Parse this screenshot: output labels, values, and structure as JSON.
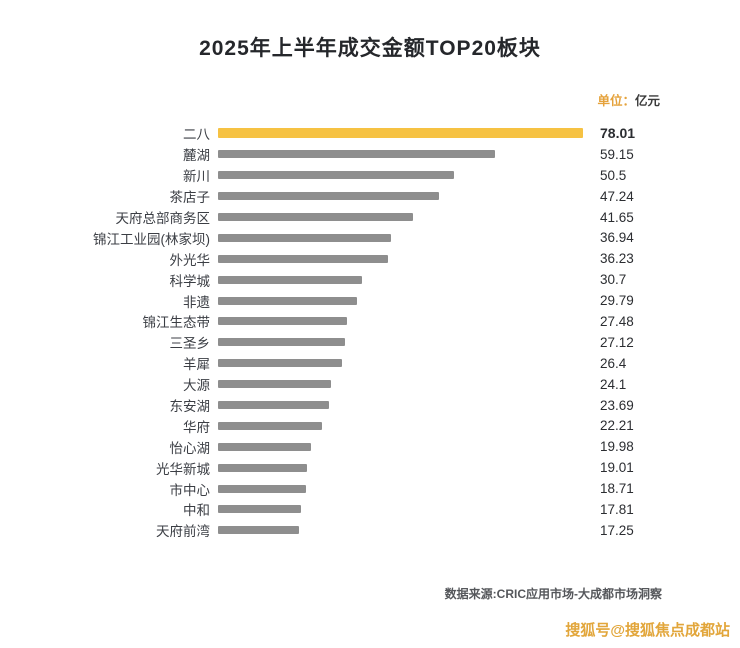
{
  "header": {
    "title": "2025年上半年成交金额TOP20板块",
    "unit_prefix": "单位：",
    "unit_text": "亿元"
  },
  "chart_data": {
    "type": "bar",
    "orientation": "horizontal",
    "title": "2025年上半年成交金额TOP20板块",
    "xlabel": "",
    "ylabel": "",
    "xlim": [
      0,
      78.01
    ],
    "grid": false,
    "categories": [
      "二八",
      "麓湖",
      "新川",
      "茶店子",
      "天府总部商务区",
      "锦江工业园(林家坝)",
      "外光华",
      "科学城",
      "非遗",
      "锦江生态带",
      "三圣乡",
      "羊犀",
      "大源",
      "东安湖",
      "华府",
      "怡心湖",
      "光华新城",
      "市中心",
      "中和",
      "天府前湾"
    ],
    "values": [
      78.01,
      59.15,
      50.5,
      47.24,
      41.65,
      36.94,
      36.23,
      30.7,
      29.79,
      27.48,
      27.12,
      26.4,
      24.1,
      23.69,
      22.21,
      19.98,
      19.01,
      18.71,
      17.81,
      17.25
    ],
    "highlight_index": 0,
    "highlight_color": "#f6c243",
    "bar_color": "#8e8e8e"
  },
  "footer": {
    "source": "数据来源:CRIC应用市场-大成都市场洞察",
    "watermark": "搜狐号@搜狐焦点成都站"
  }
}
